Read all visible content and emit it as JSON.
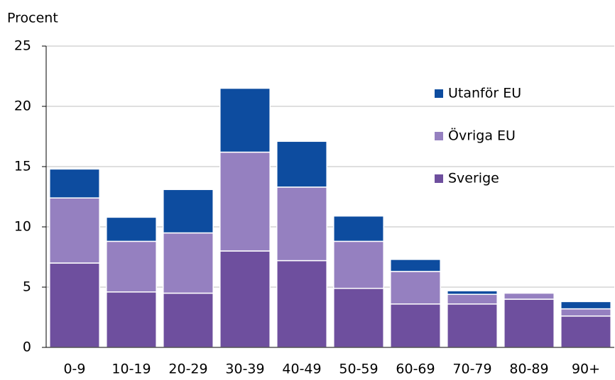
{
  "chart_data": {
    "type": "stacked_bar",
    "y_label": "Procent",
    "categories": [
      "0-9",
      "10-19",
      "20-29",
      "30-39",
      "40-49",
      "50-59",
      "60-69",
      "70-79",
      "80-89",
      "90+"
    ],
    "series": [
      {
        "name": "Sverige",
        "color": "#6e4f9e",
        "values": [
          7.0,
          4.6,
          4.5,
          8.0,
          7.2,
          4.9,
          3.6,
          3.6,
          4.0,
          2.6
        ]
      },
      {
        "name": "Övriga EU",
        "color": "#9580c0",
        "values": [
          5.4,
          4.2,
          5.0,
          8.2,
          6.1,
          3.9,
          2.7,
          0.8,
          0.5,
          0.6
        ]
      },
      {
        "name": "Utanför EU",
        "color": "#0d4c9f",
        "values": [
          2.4,
          2.0,
          3.6,
          5.3,
          3.8,
          2.1,
          1.0,
          0.3,
          0.0,
          0.6
        ]
      }
    ],
    "ylim": [
      0,
      25
    ],
    "yticks": [
      0,
      5,
      10,
      15,
      20,
      25
    ],
    "grid": true
  }
}
